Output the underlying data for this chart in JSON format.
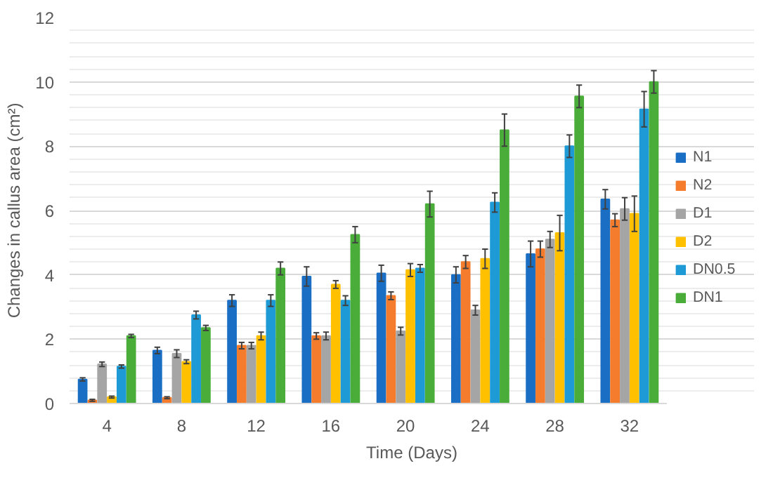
{
  "chart_data": {
    "type": "bar",
    "xlabel": "Time (Days)",
    "ylabel": "Changes in callus area (cm²)",
    "categories": [
      "4",
      "8",
      "12",
      "16",
      "20",
      "24",
      "28",
      "32"
    ],
    "series": [
      {
        "name": "N1",
        "color": "#1a6fc4",
        "values": [
          0.75,
          1.65,
          3.2,
          3.95,
          4.05,
          4.0,
          4.65,
          6.35
        ],
        "errors": [
          0.05,
          0.1,
          0.18,
          0.3,
          0.25,
          0.25,
          0.4,
          0.3
        ]
      },
      {
        "name": "N2",
        "color": "#f47c2c",
        "values": [
          0.1,
          0.18,
          1.8,
          2.1,
          3.35,
          4.4,
          4.8,
          5.7
        ],
        "errors": [
          0.03,
          0.03,
          0.1,
          0.1,
          0.12,
          0.2,
          0.25,
          0.2
        ]
      },
      {
        "name": "D1",
        "color": "#a5a5a5",
        "values": [
          1.22,
          1.55,
          1.8,
          2.1,
          2.25,
          2.9,
          5.1,
          6.05
        ],
        "errors": [
          0.07,
          0.12,
          0.1,
          0.12,
          0.12,
          0.15,
          0.25,
          0.35
        ]
      },
      {
        "name": "D2",
        "color": "#ffc000",
        "values": [
          0.2,
          1.3,
          2.1,
          3.7,
          4.15,
          4.5,
          5.3,
          5.9
        ],
        "errors": [
          0.03,
          0.06,
          0.12,
          0.12,
          0.2,
          0.3,
          0.55,
          0.55
        ]
      },
      {
        "name": "DN0.5",
        "color": "#1e9ad6",
        "values": [
          1.15,
          2.75,
          3.2,
          3.2,
          4.2,
          6.25,
          8.0,
          9.15
        ],
        "errors": [
          0.05,
          0.12,
          0.18,
          0.15,
          0.12,
          0.3,
          0.35,
          0.55
        ]
      },
      {
        "name": "DN1",
        "color": "#4aad3a",
        "values": [
          2.1,
          2.35,
          4.2,
          5.25,
          6.2,
          8.5,
          9.55,
          10.0
        ],
        "errors": [
          0.05,
          0.08,
          0.2,
          0.25,
          0.4,
          0.5,
          0.35,
          0.35
        ]
      }
    ],
    "ylim": [
      0,
      12
    ],
    "yticks": [
      0,
      2,
      4,
      6,
      8,
      10,
      12
    ],
    "grid": "y",
    "legend": "right"
  }
}
